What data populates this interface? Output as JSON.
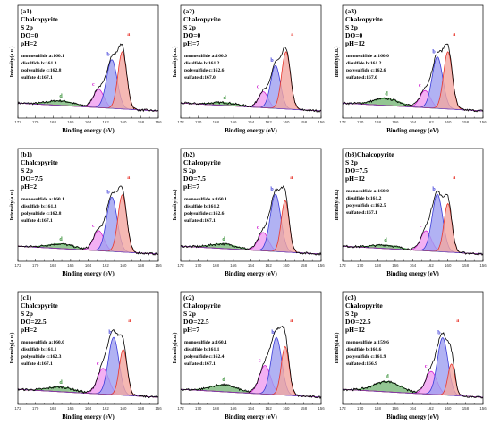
{
  "chart_data": {
    "type": "line",
    "x_range": [
      172,
      156
    ],
    "x_ticks": [
      "172",
      "170",
      "168",
      "166",
      "164",
      "162",
      "160",
      "158",
      "156"
    ],
    "xlabel": "Binding energy (eV)",
    "ylabel": "Intensity(a.u.)",
    "colors": {
      "a": "#e8352b",
      "b": "#3a3ad8",
      "c": "#d020d0",
      "d": "#2e8b2e",
      "fill_a": "#f2a6a0",
      "fill_b": "#9e9ff0",
      "fill_c": "#f09cf0",
      "fill_d": "#78b878"
    },
    "panels": [
      {
        "label": "(a1)",
        "mineral": "Chalcopyrite",
        "spectrum": "S 2p",
        "do": "DO=0",
        "ph": "pH=2",
        "peaks": [
          {
            "name": "monosulfide",
            "letter": "a",
            "be": 160.1,
            "text": "monosulfide a:160.1",
            "height": 1.0,
            "width": 0.5
          },
          {
            "name": "disulfide",
            "letter": "b",
            "be": 161.3,
            "text": "disulfide  b:161.3",
            "height": 0.85,
            "width": 0.6
          },
          {
            "name": "polysulfide",
            "letter": "c",
            "be": 162.8,
            "text": "polysulfide  c:162.8",
            "height": 0.32,
            "width": 0.6
          },
          {
            "name": "sulfate",
            "letter": "d",
            "be": 167.1,
            "text": "sulfate     d:167.1",
            "height": 0.08,
            "width": 1.5
          }
        ]
      },
      {
        "label": "(a2)",
        "mineral": "Chalcopyrite",
        "spectrum": "S 2p",
        "do": "DO=0",
        "ph": "pH=7",
        "peaks": [
          {
            "name": "monosulfide",
            "letter": "a",
            "be": 160.0,
            "text": "monosulfide a:160.0",
            "height": 1.0,
            "width": 0.5
          },
          {
            "name": "disulfide",
            "letter": "b",
            "be": 161.2,
            "text": "disulfide  b:161.2",
            "height": 0.75,
            "width": 0.55
          },
          {
            "name": "polysulfide",
            "letter": "c",
            "be": 162.6,
            "text": "polysulfide  c:162.6",
            "height": 0.28,
            "width": 0.55
          },
          {
            "name": "sulfate",
            "letter": "d",
            "be": 167.0,
            "text": "sulfate     d:167.0",
            "height": 0.05,
            "width": 1.5
          }
        ]
      },
      {
        "label": "(a3)",
        "mineral": "Chalcopyrite",
        "spectrum": "S 2p",
        "do": "DO=0",
        "ph": "pH=12",
        "peaks": [
          {
            "name": "monosulfide",
            "letter": "a",
            "be": 160.0,
            "text": "monosulfide a:160.0",
            "height": 1.0,
            "width": 0.5
          },
          {
            "name": "disulfide",
            "letter": "b",
            "be": 161.2,
            "text": "disulfide  b:161.2",
            "height": 0.9,
            "width": 0.6
          },
          {
            "name": "polysulfide",
            "letter": "c",
            "be": 162.6,
            "text": "polysulfide  c:162.6",
            "height": 0.3,
            "width": 0.6
          },
          {
            "name": "sulfate",
            "letter": "d",
            "be": 167.0,
            "text": "sulfate     d:167.0",
            "height": 0.12,
            "width": 1.5
          }
        ]
      },
      {
        "label": "(b1)",
        "mineral": "Chalcopyrite",
        "spectrum": "S 2p",
        "do": "DO=7.5",
        "ph": "pH=2",
        "peaks": [
          {
            "name": "monosulfide",
            "letter": "a",
            "be": 160.1,
            "text": "monosulfide a:160.1",
            "height": 1.0,
            "width": 0.5
          },
          {
            "name": "disulfide",
            "letter": "b",
            "be": 161.3,
            "text": "disulfide  b:161.3",
            "height": 0.95,
            "width": 0.6
          },
          {
            "name": "polysulfide",
            "letter": "c",
            "be": 162.8,
            "text": "polysulfide  c:162.8",
            "height": 0.35,
            "width": 0.6
          },
          {
            "name": "sulfate",
            "letter": "d",
            "be": 167.1,
            "text": "sulfate     d:167.1",
            "height": 0.08,
            "width": 1.5
          }
        ]
      },
      {
        "label": "(b2)",
        "mineral": "Chalcopyrite",
        "spectrum": "S 2p",
        "do": "DO=7.5",
        "ph": "pH=7",
        "peaks": [
          {
            "name": "monosulfide",
            "letter": "a",
            "be": 160.1,
            "text": "monosulfide a:160.1",
            "height": 0.9,
            "width": 0.45
          },
          {
            "name": "disulfide",
            "letter": "b",
            "be": 161.2,
            "text": "disulfide  b:161.2",
            "height": 1.0,
            "width": 0.6
          },
          {
            "name": "polysulfide",
            "letter": "c",
            "be": 162.6,
            "text": "polysulfide  c:162.6",
            "height": 0.32,
            "width": 0.6
          },
          {
            "name": "sulfate",
            "letter": "d",
            "be": 167.1,
            "text": "sulfate     d:167.1",
            "height": 0.08,
            "width": 1.5
          }
        ]
      },
      {
        "label": "(b3)",
        "mineral": "Chalcopyrite",
        "spectrum": "S 2p",
        "do": "DO=7.5",
        "ph": "pH=12",
        "peaks": [
          {
            "name": "monosulfide",
            "letter": "a",
            "be": 160.0,
            "text": "monosulfide a:160.0",
            "height": 0.85,
            "width": 0.45
          },
          {
            "name": "disulfide",
            "letter": "b",
            "be": 161.2,
            "text": "disulfide  b:161.2",
            "height": 1.0,
            "width": 0.6
          },
          {
            "name": "polysulfide",
            "letter": "c",
            "be": 162.5,
            "text": "polysulfide  c:162.5",
            "height": 0.35,
            "width": 0.6
          },
          {
            "name": "sulfate",
            "letter": "d",
            "be": 167.1,
            "text": "sulfate     d:167.1",
            "height": 0.06,
            "width": 1.5
          }
        ]
      },
      {
        "label": "(c1)",
        "mineral": "Chalcopyrite",
        "spectrum": "S 2p",
        "do": "DO=22.5",
        "ph": "pH=2",
        "peaks": [
          {
            "name": "monosulfide",
            "letter": "a",
            "be": 160.0,
            "text": "monosulfide a:160.0",
            "height": 0.8,
            "width": 0.45
          },
          {
            "name": "disulfide",
            "letter": "b",
            "be": 161.1,
            "text": "disulfide  b:161.1",
            "height": 1.0,
            "width": 0.6
          },
          {
            "name": "polysulfide",
            "letter": "c",
            "be": 162.3,
            "text": "polysulfide  c:162.3",
            "height": 0.45,
            "width": 0.65
          },
          {
            "name": "sulfate",
            "letter": "d",
            "be": 167.1,
            "text": "sulfate     d:167.1",
            "height": 0.08,
            "width": 1.5
          }
        ]
      },
      {
        "label": "(c2)",
        "mineral": "Chalcopyrite",
        "spectrum": "S 2p",
        "do": "DO=22.5",
        "ph": "pH=7",
        "peaks": [
          {
            "name": "monosulfide",
            "letter": "a",
            "be": 160.1,
            "text": "monosulfide a:160.1",
            "height": 0.85,
            "width": 0.45
          },
          {
            "name": "disulfide",
            "letter": "b",
            "be": 161.1,
            "text": "disulfide  b:161.1",
            "height": 1.0,
            "width": 0.6
          },
          {
            "name": "polysulfide",
            "letter": "c",
            "be": 162.4,
            "text": "polysulfide  c:162.4",
            "height": 0.5,
            "width": 0.65
          },
          {
            "name": "sulfate",
            "letter": "d",
            "be": 167.1,
            "text": "sulfate     d:167.1",
            "height": 0.12,
            "width": 1.5
          }
        ]
      },
      {
        "label": "(c3)",
        "mineral": "Chalcopyrite",
        "spectrum": "S 2p",
        "do": "DO=22.5",
        "ph": "pH=12",
        "peaks": [
          {
            "name": "monosulfide",
            "letter": "a",
            "be": 159.6,
            "text": "monosulfide a:159.6",
            "height": 0.55,
            "width": 0.4
          },
          {
            "name": "disulfide",
            "letter": "b",
            "be": 160.6,
            "text": "disulfide  b:160.6",
            "height": 1.0,
            "width": 0.6
          },
          {
            "name": "polysulfide",
            "letter": "c",
            "be": 161.9,
            "text": "polysulfide  c:161.9",
            "height": 0.4,
            "width": 0.65
          },
          {
            "name": "sulfate",
            "letter": "d",
            "be": 166.9,
            "text": "sulfate     d:166.9",
            "height": 0.18,
            "width": 1.5
          }
        ]
      }
    ]
  }
}
